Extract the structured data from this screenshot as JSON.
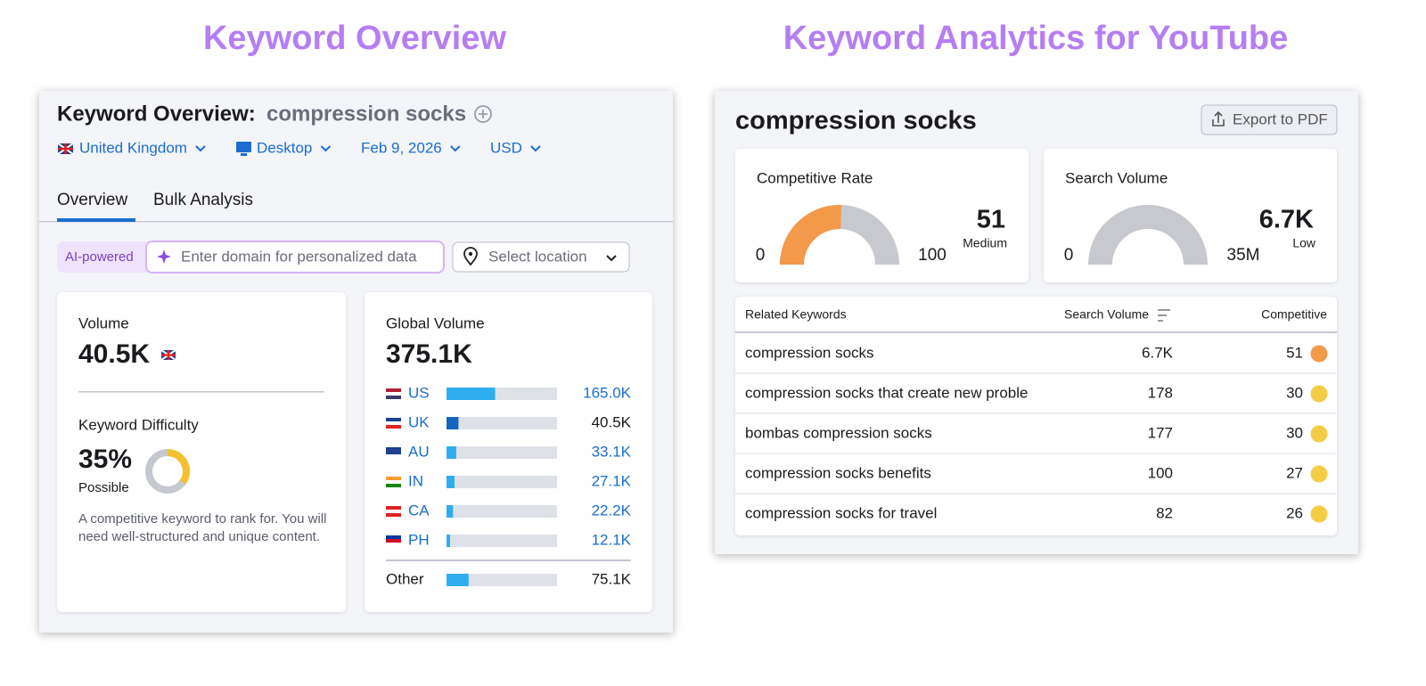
{
  "titles": {
    "left": "Keyword Overview",
    "right": "Keyword Analytics for YouTube"
  },
  "overview": {
    "heading": "Keyword Overview:",
    "keyword": "compression socks",
    "filters": [
      "United Kingdom",
      "Desktop",
      "Feb 9, 2026",
      "USD"
    ],
    "tabs": [
      "Overview",
      "Bulk Analysis"
    ],
    "ai_badge": "AI-powered",
    "domain_placeholder": "Enter domain for personalized data",
    "location_placeholder": "Select location",
    "volume": {
      "label": "Volume",
      "value": "40.5K"
    },
    "difficulty": {
      "label": "Keyword Difficulty",
      "type": "donut",
      "value": 35,
      "value_label": "35%",
      "lim": [
        0,
        100
      ],
      "color": "#f5c02f",
      "level": "Possible",
      "description": "A competitive keyword to rank for. You will need well-structured and unique content."
    },
    "global_volume": {
      "type": "bar",
      "label": "Global Volume",
      "total": 375100,
      "total_label": "375.1K",
      "countries": [
        "US",
        "UK",
        "AU",
        "IN",
        "CA",
        "PH"
      ],
      "values": [
        165000,
        40500,
        33100,
        27100,
        22200,
        12100
      ],
      "value_labels": [
        "165.0K",
        "40.5K",
        "33.1K",
        "27.1K",
        "22.2K",
        "12.1K"
      ],
      "other_label": "Other",
      "other_value": 75100,
      "other_value_label": "75.1K",
      "colors": [
        "#2eaef0",
        "#1565c0",
        "#2eaef0",
        "#2eaef0",
        "#2eaef0",
        "#2eaef0"
      ],
      "other_color": "#2eaef0"
    }
  },
  "youtube": {
    "keyword": "compression socks",
    "export": "Export to PDF",
    "gauges": [
      {
        "type": "gauge",
        "label": "Competitive Rate",
        "min": 0,
        "max": 100,
        "value": 51,
        "value_label": "51",
        "level": "Medium",
        "color": "#f2994a"
      },
      {
        "type": "gauge",
        "label": "Search Volume",
        "min": 0,
        "max": {
          "value": 35000000,
          "label": "35M"
        },
        "value": 6700,
        "value_label": "6.7K",
        "level": "Low",
        "color": "#27a85a"
      }
    ],
    "table": {
      "headers": [
        "Related Keywords",
        "Search Volume",
        "Competitive"
      ],
      "rows": [
        {
          "keyword": "compression socks",
          "volume": "6.7K",
          "competitive": 51,
          "color": "#f2994a"
        },
        {
          "keyword": "compression socks that create new proble",
          "volume": 178,
          "competitive": 30,
          "color": "#f5cc46"
        },
        {
          "keyword": "bombas compression socks",
          "volume": 177,
          "competitive": 30,
          "color": "#f5cc46"
        },
        {
          "keyword": "compression socks benefits",
          "volume": 100,
          "competitive": 27,
          "color": "#f5cc46"
        },
        {
          "keyword": "compression socks for travel",
          "volume": 82,
          "competitive": 26,
          "color": "#f5cc46"
        }
      ]
    }
  }
}
